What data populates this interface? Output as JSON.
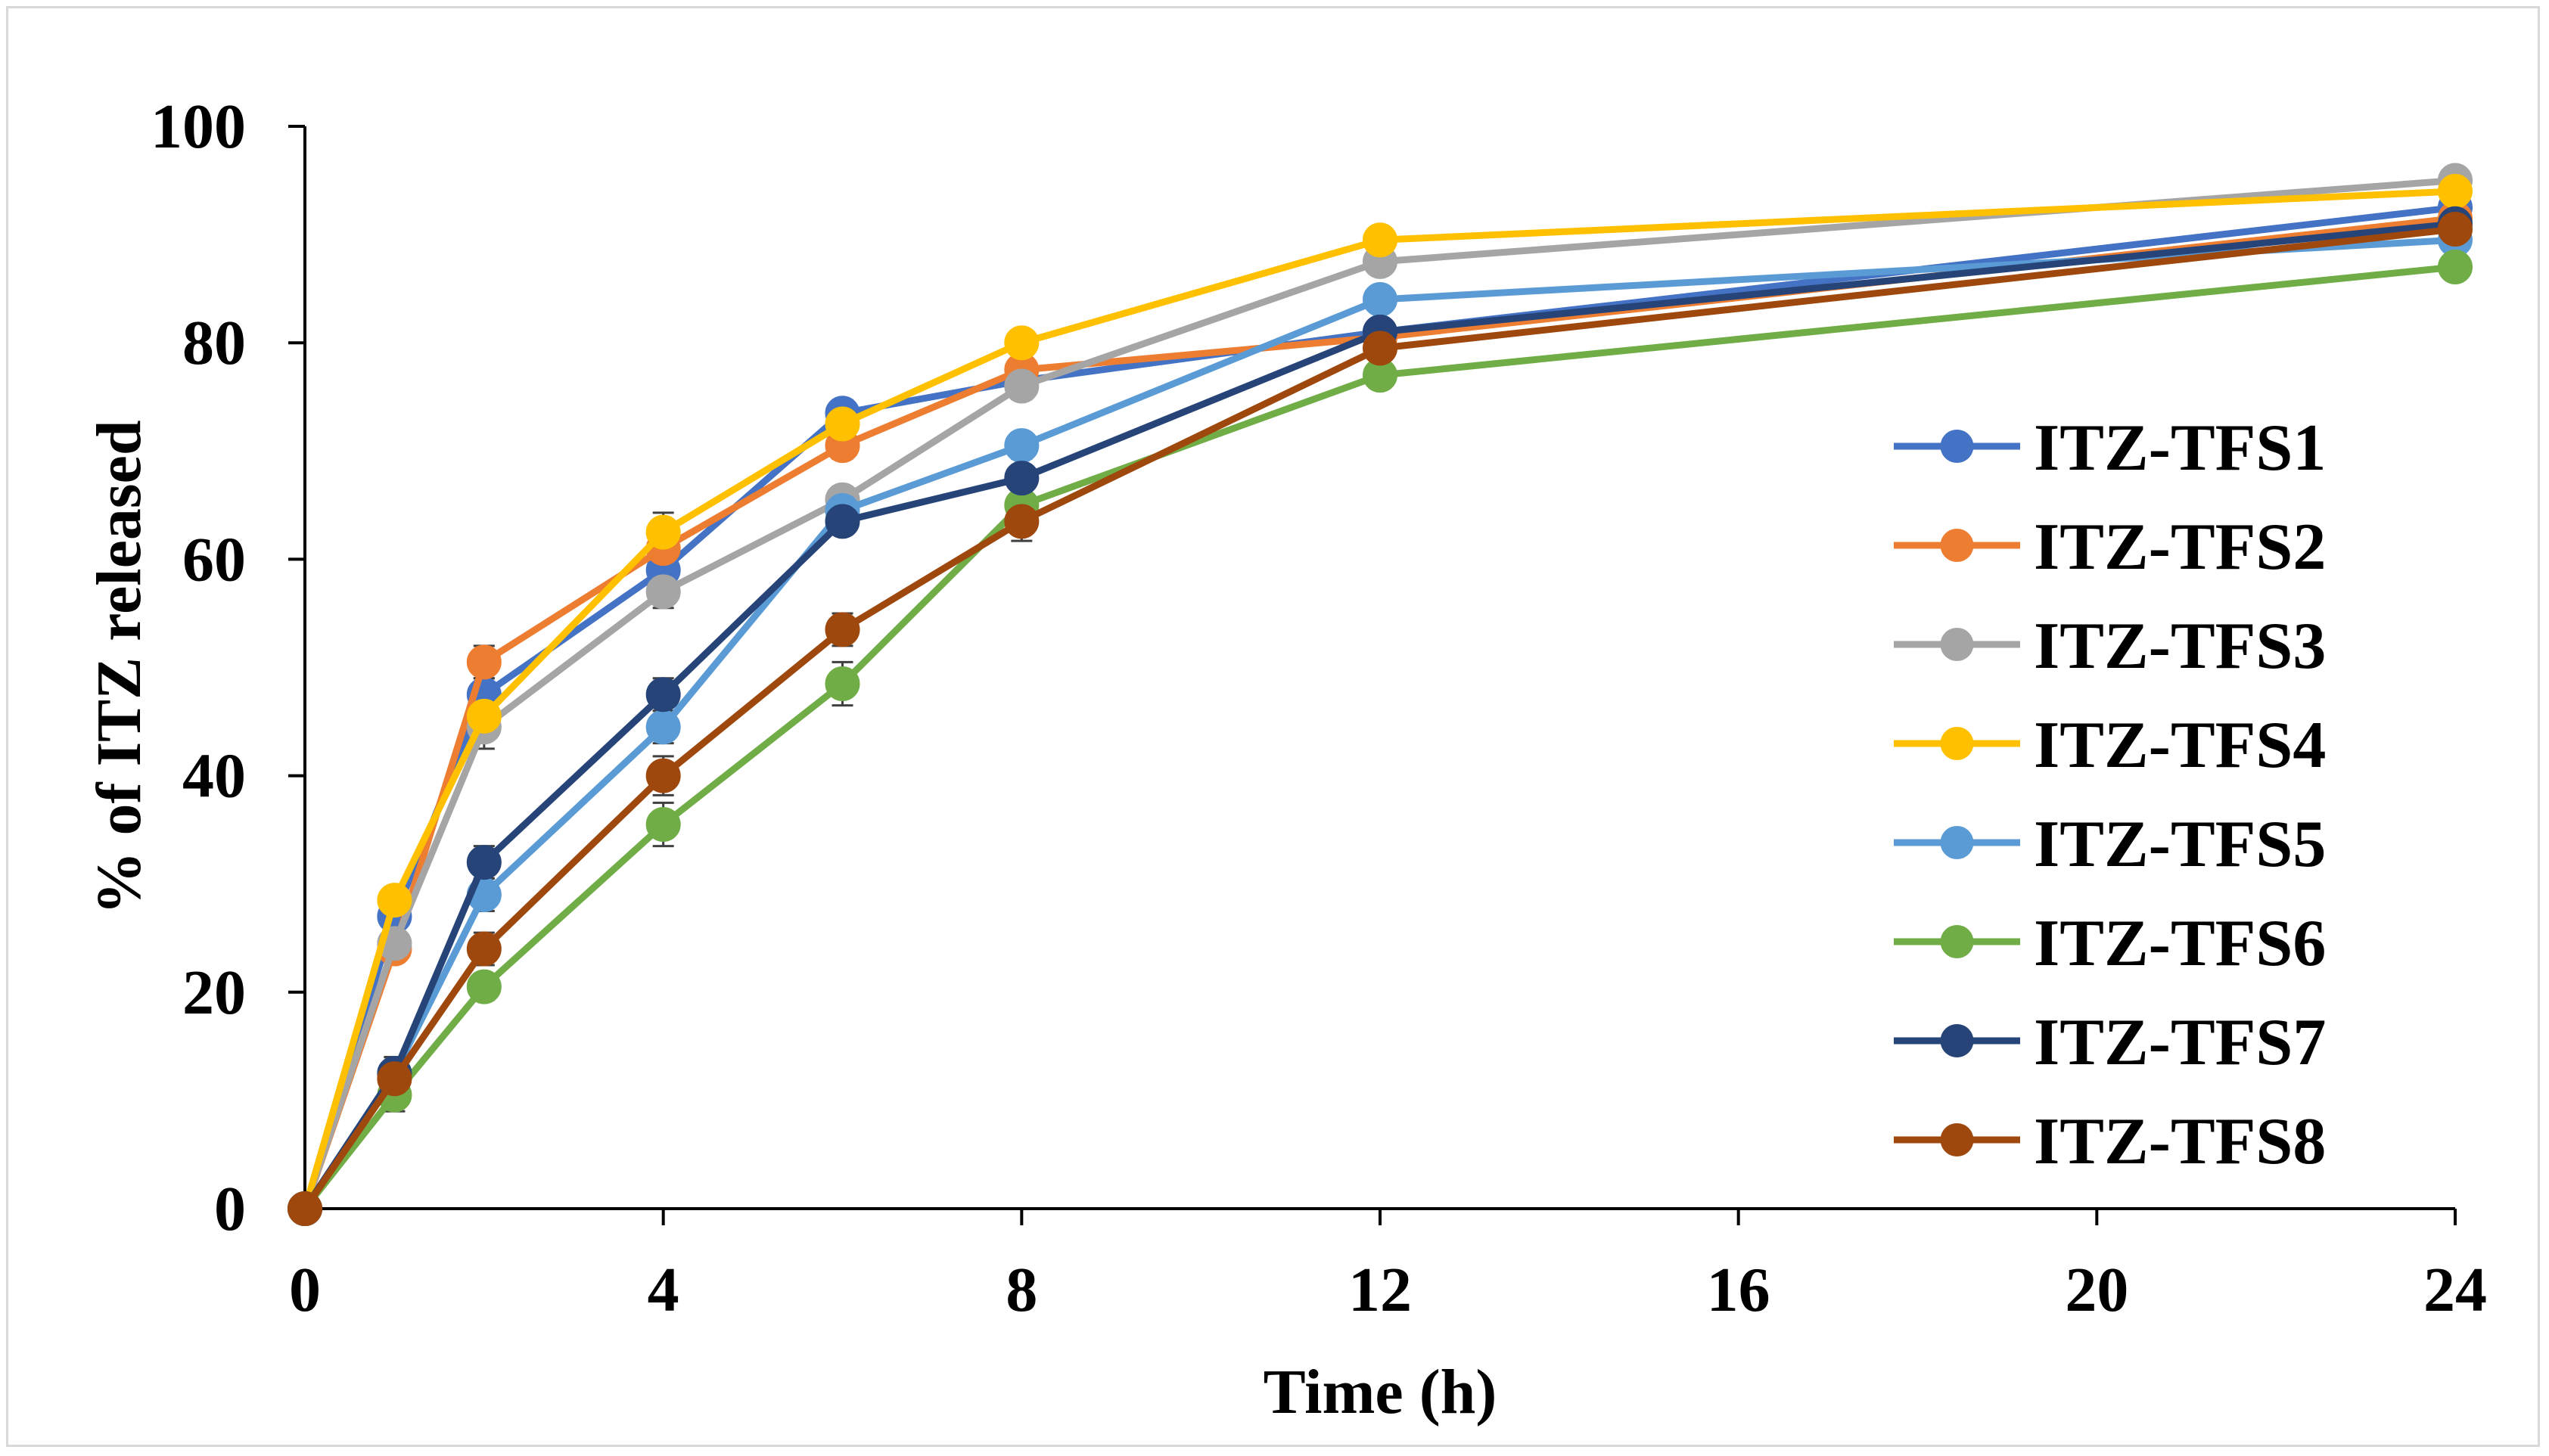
{
  "chart_data": {
    "type": "line",
    "title": "",
    "xlabel": "Time (h)",
    "ylabel": "% of ITZ released",
    "xlim": [
      0,
      24
    ],
    "ylim": [
      0,
      100
    ],
    "xticks": [
      0,
      4,
      8,
      12,
      16,
      20,
      24
    ],
    "yticks": [
      0,
      20,
      40,
      60,
      80,
      100
    ],
    "x": [
      0,
      1,
      2,
      4,
      6,
      8,
      12,
      24
    ],
    "legend_position": "right",
    "grid": false,
    "error_bars": true,
    "series": [
      {
        "name": "ITZ-TFS1",
        "color": "#4472C4",
        "values": [
          0,
          27,
          47.5,
          59,
          73.5,
          76.5,
          81,
          92.5
        ],
        "errors": [
          0,
          1.2,
          1.5,
          1.5,
          1.2,
          1.2,
          1.0,
          1.0
        ]
      },
      {
        "name": "ITZ-TFS2",
        "color": "#ED7D31",
        "values": [
          0,
          24,
          50.5,
          61,
          70.5,
          77.5,
          80.5,
          91.5
        ],
        "errors": [
          0,
          1.2,
          1.5,
          1.5,
          1.2,
          1.2,
          1.0,
          1.0
        ]
      },
      {
        "name": "ITZ-TFS3",
        "color": "#A5A5A5",
        "values": [
          0,
          24.5,
          44.5,
          57,
          65.5,
          76,
          87.5,
          95
        ],
        "errors": [
          0,
          1.2,
          2.0,
          1.5,
          1.2,
          1.2,
          1.0,
          0.8
        ]
      },
      {
        "name": "ITZ-TFS4",
        "color": "#FFC000",
        "values": [
          0,
          28.5,
          45.5,
          62.5,
          72.5,
          80,
          89.5,
          94
        ],
        "errors": [
          0,
          1.2,
          1.5,
          1.8,
          1.2,
          1.0,
          1.0,
          0.8
        ]
      },
      {
        "name": "ITZ-TFS5",
        "color": "#5B9BD5",
        "values": [
          0,
          12.5,
          29,
          44.5,
          64.5,
          70.5,
          84,
          89.5
        ],
        "errors": [
          0,
          1.5,
          1.5,
          1.5,
          1.2,
          1.2,
          1.0,
          1.0
        ]
      },
      {
        "name": "ITZ-TFS6",
        "color": "#70AD47",
        "values": [
          0,
          10.5,
          20.5,
          35.5,
          48.5,
          65,
          77,
          87
        ],
        "errors": [
          0,
          1.5,
          1.2,
          2.0,
          2.0,
          1.5,
          1.2,
          1.0
        ]
      },
      {
        "name": "ITZ-TFS7",
        "color": "#264478",
        "values": [
          0,
          12.5,
          32,
          47.5,
          63.5,
          67.5,
          81,
          91
        ],
        "errors": [
          0,
          1.5,
          1.5,
          1.5,
          1.2,
          1.2,
          1.0,
          1.0
        ]
      },
      {
        "name": "ITZ-TFS8",
        "color": "#9E480E",
        "values": [
          0,
          12,
          24,
          40,
          53.5,
          63.5,
          79.5,
          90.5
        ],
        "errors": [
          0,
          1.5,
          1.5,
          1.8,
          1.5,
          1.8,
          1.2,
          1.0
        ]
      }
    ]
  }
}
